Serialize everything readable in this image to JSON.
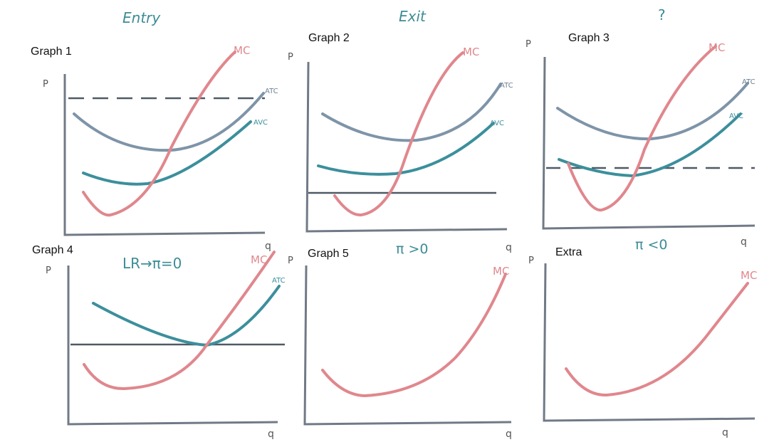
{
  "colors": {
    "mc": "#e0878d",
    "atc": "#7e94a8",
    "avc": "#3c8f9c",
    "axis": "#707a86",
    "dash": "#4f5a66",
    "price": "#4f5a66",
    "heading": "#3d8c96",
    "label": "#111111"
  },
  "headings": {
    "entry": "Entry",
    "exit": "Exit",
    "question": "?",
    "lr": "LR→π=0",
    "profit_pos": "π >0",
    "profit_neg": "π <0"
  },
  "graphs": {
    "g1": {
      "title": "Graph 1",
      "y_axis": "P",
      "x_axis": "q",
      "mc": "MC",
      "atc": "ATC",
      "avc": "AVC"
    },
    "g2": {
      "title": "Graph 2",
      "y_axis": "P",
      "x_axis": "q",
      "mc": "MC",
      "atc": "ATC",
      "avc": "AVC"
    },
    "g3": {
      "title": "Graph 3",
      "y_axis": "P",
      "x_axis": "q",
      "mc": "MC",
      "atc": "ATC",
      "avc": "AVC"
    },
    "g4": {
      "title": "Graph 4",
      "y_axis": "P",
      "x_axis": "q",
      "mc": "MC",
      "atc": "ATC"
    },
    "g5": {
      "title": "Graph 5",
      "y_axis": "P",
      "x_axis": "q",
      "mc": "MC"
    },
    "g6": {
      "title": "Extra",
      "y_axis": "P",
      "x_axis": "q",
      "mc": "MC"
    }
  }
}
